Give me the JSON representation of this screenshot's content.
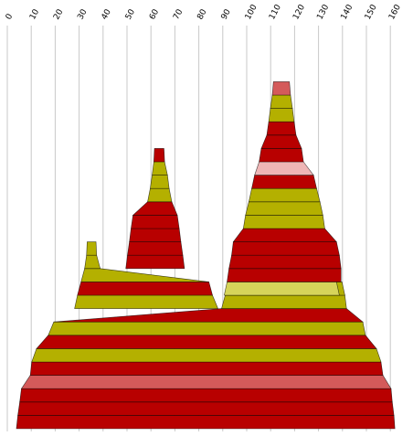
{
  "chart_data": {
    "type": "area",
    "xlim": [
      0,
      160
    ],
    "x_ticks": [
      0,
      10,
      20,
      30,
      40,
      50,
      60,
      70,
      80,
      90,
      100,
      110,
      120,
      130,
      140,
      150,
      160
    ],
    "x_tick_labels": [
      "0",
      "10",
      "20",
      "30",
      "40",
      "50",
      "60",
      "70",
      "80",
      "90",
      "100",
      "110",
      "120",
      "130",
      "140",
      "150",
      "160"
    ],
    "grid": true,
    "palette": {
      "red": "#b80000",
      "olive": "#b4b000",
      "pink": "#d45a5a",
      "light_pink": "#efb6b6",
      "light_olive": "#d6d45a"
    },
    "layers": [
      {
        "x_start": 3.8,
        "x_end": 161.9,
        "color": "red"
      },
      {
        "x_start": 4.4,
        "x_end": 161.5,
        "color": "red"
      },
      {
        "x_start": 5.2,
        "x_end": 160.8,
        "color": "red"
      },
      {
        "x_start": 5.9,
        "x_end": 160.3,
        "color": "pink"
      },
      {
        "x_start": 9.6,
        "x_end": 156.9,
        "color": "red"
      },
      {
        "x_start": 10.2,
        "x_end": 156.1,
        "color": "olive"
      },
      {
        "x_start": 12.2,
        "x_end": 154.2,
        "color": "red"
      },
      {
        "x_start": 17.1,
        "x_end": 149.6,
        "color": "olive"
      },
      {
        "x_start": 19.4,
        "x_end": 148.5,
        "color": "red"
      },
      {
        "x_start": 89.5,
        "x_end": 141.7,
        "color": "olive"
      },
      {
        "x_start": 91.0,
        "x_end": 141.0,
        "color": "olive"
      },
      {
        "x_start": 90.6,
        "x_end": 138.7,
        "color": "light_olive"
      },
      {
        "x_start": 91.8,
        "x_end": 139.4,
        "color": "red"
      },
      {
        "x_start": 92.6,
        "x_end": 139.4,
        "color": "red"
      },
      {
        "x_start": 93.7,
        "x_end": 138.7,
        "color": "red"
      },
      {
        "x_start": 94.4,
        "x_end": 137.5,
        "color": "red"
      },
      {
        "x_start": 98.6,
        "x_end": 132.6,
        "color": "olive"
      },
      {
        "x_start": 99.5,
        "x_end": 131.8,
        "color": "olive"
      },
      {
        "x_start": 100.9,
        "x_end": 130.6,
        "color": "olive"
      },
      {
        "x_start": 102.1,
        "x_end": 129.2,
        "color": "red"
      },
      {
        "x_start": 103.3,
        "x_end": 127.9,
        "color": "light_pink"
      },
      {
        "x_start": 105.2,
        "x_end": 123.7,
        "color": "red"
      },
      {
        "x_start": 106.1,
        "x_end": 122.9,
        "color": "red"
      },
      {
        "x_start": 108.4,
        "x_end": 120.6,
        "color": "red"
      },
      {
        "x_start": 109.2,
        "x_end": 119.8,
        "color": "olive"
      },
      {
        "x_start": 109.9,
        "x_end": 119.1,
        "color": "olive"
      },
      {
        "x_start": 110.7,
        "x_end": 118.3,
        "color": "pink"
      },
      {
        "x_start": 28.1,
        "x_end": 88.0,
        "color": "olive"
      },
      {
        "x_start": 29.3,
        "x_end": 85.7,
        "color": "red"
      },
      {
        "x_start": 30.8,
        "x_end": 84.2,
        "color": "olive"
      },
      {
        "x_start": 32.3,
        "x_end": 38.8,
        "color": "olive"
      },
      {
        "x_start": 33.1,
        "x_end": 37.3,
        "color": "olive"
      },
      {
        "x_start": 49.5,
        "x_end": 74.0,
        "color": "red"
      },
      {
        "x_start": 50.2,
        "x_end": 73.3,
        "color": "red"
      },
      {
        "x_start": 51.0,
        "x_end": 72.5,
        "color": "red"
      },
      {
        "x_start": 51.7,
        "x_end": 71.8,
        "color": "red"
      },
      {
        "x_start": 52.5,
        "x_end": 71.0,
        "color": "red"
      },
      {
        "x_start": 58.6,
        "x_end": 68.7,
        "color": "olive"
      },
      {
        "x_start": 59.7,
        "x_end": 67.6,
        "color": "olive"
      },
      {
        "x_start": 60.5,
        "x_end": 66.9,
        "color": "olive"
      },
      {
        "x_start": 61.2,
        "x_end": 65.7,
        "color": "red"
      }
    ]
  }
}
